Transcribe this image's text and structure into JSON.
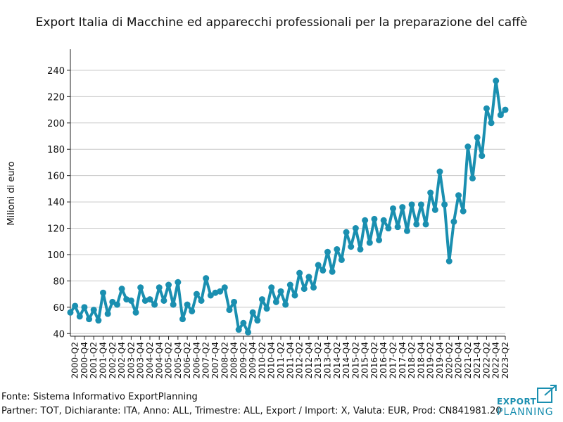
{
  "chart_data": {
    "type": "line",
    "title": "Export Italia di Macchine ed apparecchi professionali per la preparazione del caffè",
    "xlabel": "",
    "ylabel": "Milioni di euro",
    "ylim": [
      38,
      256
    ],
    "yticks": [
      40,
      60,
      80,
      100,
      120,
      140,
      160,
      180,
      200,
      220,
      240
    ],
    "grid": true,
    "line_color": "#1a8fb0",
    "x": [
      "2000-Q1",
      "2000-Q2",
      "2000-Q3",
      "2000-Q4",
      "2001-Q1",
      "2001-Q2",
      "2001-Q3",
      "2001-Q4",
      "2002-Q1",
      "2002-Q2",
      "2002-Q3",
      "2002-Q4",
      "2003-Q1",
      "2003-Q2",
      "2003-Q3",
      "2003-Q4",
      "2004-Q1",
      "2004-Q2",
      "2004-Q3",
      "2004-Q4",
      "2005-Q1",
      "2005-Q2",
      "2005-Q3",
      "2005-Q4",
      "2006-Q1",
      "2006-Q2",
      "2006-Q3",
      "2006-Q4",
      "2007-Q1",
      "2007-Q2",
      "2007-Q3",
      "2007-Q4",
      "2008-Q1",
      "2008-Q2",
      "2008-Q3",
      "2008-Q4",
      "2009-Q1",
      "2009-Q2",
      "2009-Q3",
      "2009-Q4",
      "2010-Q1",
      "2010-Q2",
      "2010-Q3",
      "2010-Q4",
      "2011-Q1",
      "2011-Q2",
      "2011-Q3",
      "2011-Q4",
      "2012-Q1",
      "2012-Q2",
      "2012-Q3",
      "2012-Q4",
      "2013-Q1",
      "2013-Q2",
      "2013-Q3",
      "2013-Q4",
      "2014-Q1",
      "2014-Q2",
      "2014-Q3",
      "2014-Q4",
      "2015-Q1",
      "2015-Q2",
      "2015-Q3",
      "2015-Q4",
      "2016-Q1",
      "2016-Q2",
      "2016-Q3",
      "2016-Q4",
      "2017-Q1",
      "2017-Q2",
      "2017-Q3",
      "2017-Q4",
      "2018-Q1",
      "2018-Q2",
      "2018-Q3",
      "2018-Q4",
      "2019-Q1",
      "2019-Q2",
      "2019-Q3",
      "2019-Q4",
      "2020-Q1",
      "2020-Q2",
      "2020-Q3",
      "2020-Q4",
      "2021-Q1",
      "2021-Q2",
      "2021-Q3",
      "2021-Q4",
      "2022-Q1",
      "2022-Q2",
      "2022-Q3",
      "2022-Q4",
      "2023-Q1",
      "2023-Q2"
    ],
    "tick_labels": [
      "2000-Q2",
      "2000-Q4",
      "2001-Q2",
      "2001-Q4",
      "2002-Q2",
      "2002-Q4",
      "2003-Q2",
      "2003-Q4",
      "2004-Q2",
      "2004-Q4",
      "2005-Q2",
      "2005-Q4",
      "2006-Q2",
      "2006-Q4",
      "2007-Q2",
      "2007-Q4",
      "2008-Q2",
      "2008-Q4",
      "2009-Q2",
      "2009-Q4",
      "2010-Q2",
      "2010-Q4",
      "2011-Q2",
      "2011-Q4",
      "2012-Q2",
      "2012-Q4",
      "2013-Q2",
      "2013-Q4",
      "2014-Q2",
      "2014-Q4",
      "2015-Q2",
      "2015-Q4",
      "2016-Q2",
      "2016-Q4",
      "2017-Q2",
      "2017-Q4",
      "2018-Q2",
      "2018-Q4",
      "2019-Q2",
      "2019-Q4",
      "2020-Q2",
      "2020-Q4",
      "2021-Q2",
      "2021-Q4",
      "2022-Q2",
      "2022-Q4",
      "2023-Q2"
    ],
    "values": [
      56,
      61,
      53,
      60,
      51,
      58,
      50,
      71,
      55,
      64,
      62,
      74,
      66,
      65,
      56,
      75,
      65,
      66,
      62,
      75,
      65,
      77,
      62,
      79,
      51,
      62,
      57,
      70,
      65,
      82,
      69,
      71,
      72,
      75,
      58,
      64,
      43,
      48,
      41,
      56,
      50,
      66,
      59,
      75,
      64,
      72,
      62,
      77,
      69,
      86,
      74,
      83,
      75,
      92,
      88,
      102,
      87,
      104,
      96,
      117,
      106,
      120,
      104,
      126,
      109,
      127,
      111,
      126,
      120,
      135,
      121,
      136,
      118,
      138,
      123,
      138,
      123,
      147,
      134,
      163,
      138,
      95,
      125,
      145,
      133,
      182,
      158,
      189,
      175,
      211,
      200,
      232,
      206,
      210
    ]
  },
  "footer": {
    "source": "Fonte: Sistema Informativo ExportPlanning",
    "meta": "Partner: TOT, Dichiarante: ITA, Anno: ALL, Trimestre: ALL, Export / Import: X, Valuta: EUR, Prod: CN841981.20"
  },
  "logo": {
    "line1": "EXPORT",
    "line2": "PLANNING"
  }
}
